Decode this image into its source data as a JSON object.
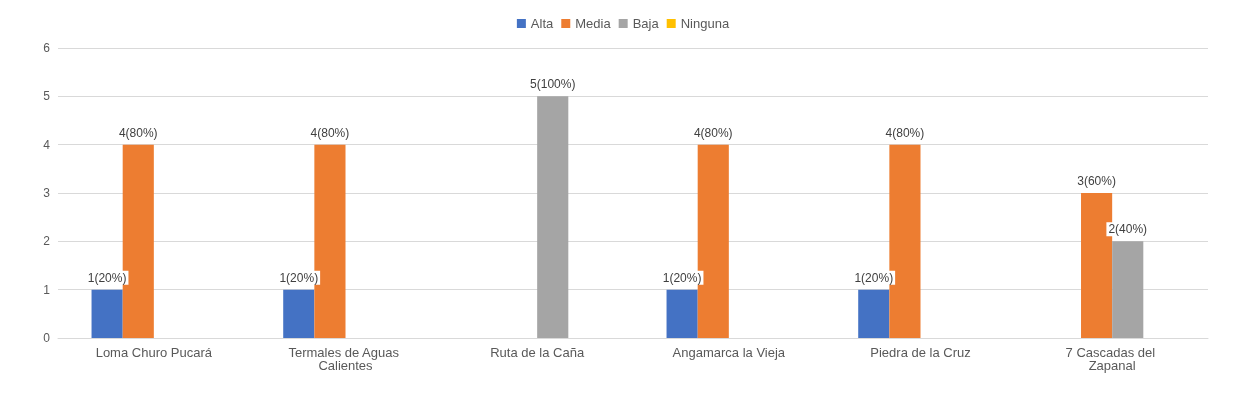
{
  "chart_data": {
    "type": "bar",
    "categories": [
      "Loma Churo Pucará",
      "Termales de Aguas Calientes",
      "Ruta de la Caña",
      "Angamarca la Vieja",
      "Piedra de la Cruz",
      "7 Cascadas del Zapanal"
    ],
    "series": [
      {
        "name": "Alta",
        "color": "#4472c4",
        "values": [
          1,
          1,
          null,
          1,
          1,
          null
        ],
        "value_labels": [
          "1(20%)",
          "1(20%)",
          null,
          "1(20%)",
          "1(20%)",
          null
        ]
      },
      {
        "name": "Media",
        "color": "#ed7d31",
        "values": [
          4,
          4,
          null,
          4,
          4,
          3
        ],
        "value_labels": [
          "4(80%)",
          "4(80%)",
          null,
          "4(80%)",
          "4(80%)",
          "3(60%)"
        ]
      },
      {
        "name": "Baja",
        "color": "#a5a5a5",
        "values": [
          null,
          null,
          5,
          null,
          null,
          2
        ],
        "value_labels": [
          null,
          null,
          "5(100%)",
          null,
          null,
          "2(40%)"
        ]
      },
      {
        "name": "Ninguna",
        "color": "#ffc000",
        "values": [
          null,
          null,
          null,
          null,
          null,
          null
        ]
      }
    ],
    "ylim": [
      0,
      6
    ],
    "yticks": [
      0,
      1,
      2,
      3,
      4,
      5,
      6
    ],
    "grid": "y",
    "legend": "top"
  }
}
